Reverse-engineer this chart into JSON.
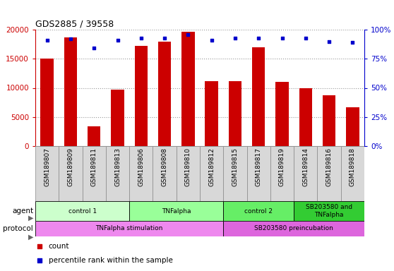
{
  "title": "GDS2885 / 39558",
  "samples": [
    "GSM189807",
    "GSM189809",
    "GSM189811",
    "GSM189813",
    "GSM189806",
    "GSM189808",
    "GSM189810",
    "GSM189812",
    "GSM189815",
    "GSM189817",
    "GSM189819",
    "GSM189814",
    "GSM189816",
    "GSM189818"
  ],
  "counts": [
    15000,
    18700,
    3400,
    9700,
    17200,
    17900,
    19600,
    11200,
    11100,
    17000,
    11000,
    10000,
    8700,
    6700
  ],
  "percentile_ranks": [
    91,
    92,
    84,
    91,
    93,
    93,
    96,
    91,
    93,
    93,
    93,
    93,
    90,
    89
  ],
  "ylim_left": [
    0,
    20000
  ],
  "ylim_right": [
    0,
    100
  ],
  "yticks_left": [
    0,
    5000,
    10000,
    15000,
    20000
  ],
  "yticks_right": [
    0,
    25,
    50,
    75,
    100
  ],
  "bar_color": "#cc0000",
  "dot_color": "#0000cc",
  "agent_groups": [
    {
      "label": "control 1",
      "start": 0,
      "end": 4,
      "color": "#ccffcc"
    },
    {
      "label": "TNFalpha",
      "start": 4,
      "end": 8,
      "color": "#99ff99"
    },
    {
      "label": "control 2",
      "start": 8,
      "end": 11,
      "color": "#66ee66"
    },
    {
      "label": "SB203580 and\nTNFalpha",
      "start": 11,
      "end": 14,
      "color": "#33cc33"
    }
  ],
  "protocol_groups": [
    {
      "label": "TNFalpha stimulation",
      "start": 0,
      "end": 8,
      "color": "#ee88ee"
    },
    {
      "label": "SB203580 preincubation",
      "start": 8,
      "end": 14,
      "color": "#dd66dd"
    }
  ],
  "legend_count_color": "#cc0000",
  "legend_percentile_color": "#0000cc",
  "left_axis_color": "#cc0000",
  "right_axis_color": "#0000cc",
  "grid_color": "#888888",
  "sample_label_bg": "#d8d8d8",
  "sample_label_border": "#888888"
}
